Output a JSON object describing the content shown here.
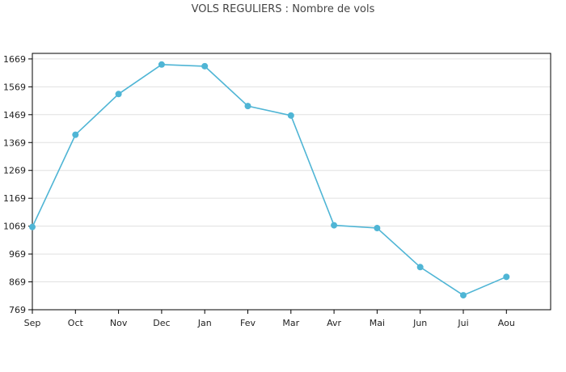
{
  "chart_data": {
    "type": "line",
    "title": "VOLS REGULIERS : Nombre de vols",
    "categories": [
      "Sep",
      "Oct",
      "Nov",
      "Dec",
      "Jan",
      "Fev",
      "Mar",
      "Avr",
      "Mai",
      "Jun",
      "Jui",
      "Aou"
    ],
    "series": [
      {
        "values": [
          1066,
          1397,
          1543,
          1649,
          1643,
          1500,
          1466,
          1072,
          1062,
          922,
          821,
          887
        ]
      }
    ],
    "xlabel": "",
    "ylabel": "",
    "ylim": [
      769,
      1689
    ],
    "yticks": [
      769,
      869,
      969,
      1069,
      1169,
      1269,
      1369,
      1469,
      1569,
      1669
    ],
    "grid": true,
    "line_color": "#4fb5d5",
    "grid_color": "#e0e0e0"
  }
}
